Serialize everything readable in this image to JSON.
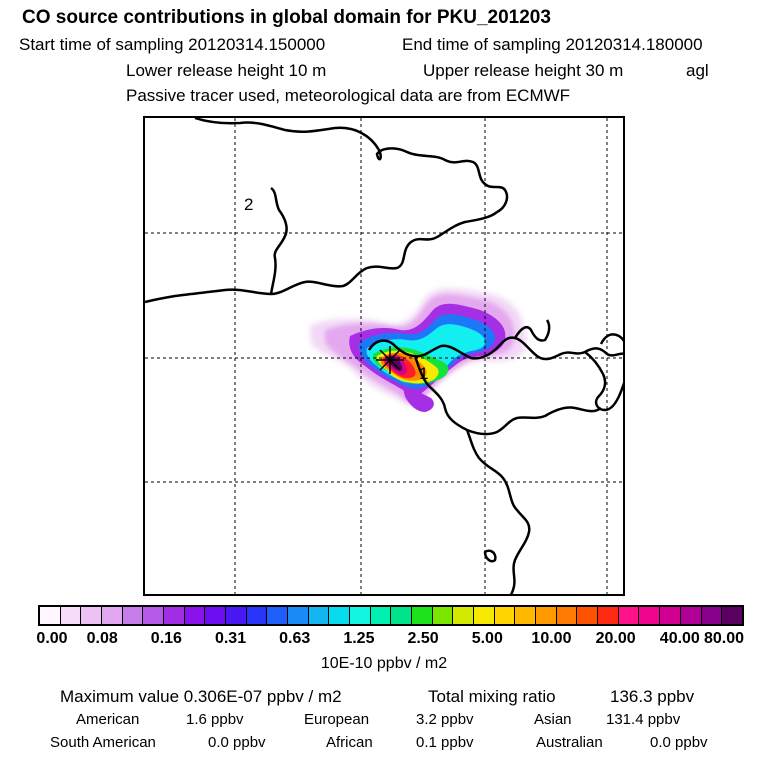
{
  "header": {
    "title": "CO  source contributions in global domain for PKU_201203",
    "start_time": "Start time of sampling 20120314.150000",
    "end_time": "End time of sampling 20120314.180000",
    "lower_release": "Lower release height   10 m",
    "upper_release": "Upper release height   30 m",
    "agl": "agl",
    "tracer_note": "Passive tracer used, meteorological data are from ECMWF"
  },
  "map": {
    "region_labels": [
      "2",
      "1"
    ],
    "gridline_color": "#000000",
    "coastline_color": "#000000"
  },
  "legend": {
    "colors": [
      "#fff6ff",
      "#f6dcf8",
      "#ecc1f4",
      "#e0a6f0",
      "#c77de8",
      "#b759e8",
      "#a12ee4",
      "#8a12ea",
      "#6c0cf0",
      "#4a17f5",
      "#2a34f8",
      "#1f5ef8",
      "#1a8af6",
      "#14b6f2",
      "#07dcef",
      "#12f6df",
      "#00f0b2",
      "#00e28a",
      "#1ee21c",
      "#7be600",
      "#d3ea00",
      "#f6e800",
      "#ffd400",
      "#ffb800",
      "#ff9b00",
      "#ff7a00",
      "#ff5200",
      "#ff2a12",
      "#ff128a",
      "#f0068e",
      "#d20092",
      "#b00096",
      "#86008c",
      "#5a0060"
    ],
    "tick_labels": [
      "0.00",
      "0.08",
      "0.16",
      "0.31",
      "0.63",
      "1.25",
      "2.50",
      "5.00",
      "10.00",
      "20.00",
      "40.00",
      "80.00"
    ],
    "units": "10E-10 ppbv / m2"
  },
  "summary": {
    "max_value": "Maximum value  0.306E-07 ppbv / m2",
    "total_mixing": "Total mixing ratio",
    "total_value": "136.3 ppbv",
    "regions": [
      {
        "name": "American",
        "value": "1.6 ppbv"
      },
      {
        "name": "European",
        "value": "3.2 ppbv"
      },
      {
        "name": "Asian",
        "value": "131.4 ppbv"
      },
      {
        "name": "South American",
        "value": "0.0 ppbv"
      },
      {
        "name": "African",
        "value": "0.1 ppbv"
      },
      {
        "name": "Australian",
        "value": "0.0 ppbv"
      }
    ]
  }
}
